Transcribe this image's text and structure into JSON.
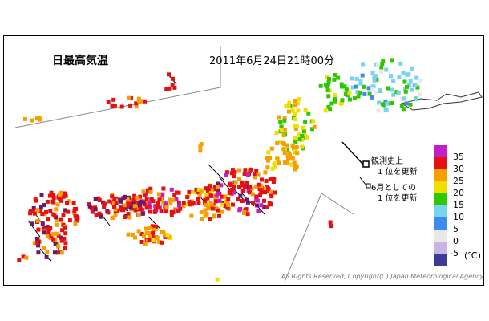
{
  "map": {
    "title": "日最高気温",
    "timestamp": "2011年6月24日21時00分",
    "legend": {
      "record_all_time": [
        "観測史上",
        "1 位を更新"
      ],
      "record_june": [
        "6月としての",
        "1 位を更新"
      ]
    },
    "color_scale": {
      "unit": "(℃)",
      "labels": [
        "35",
        "30",
        "25",
        "20",
        "15",
        "10",
        "5",
        "0",
        "-5"
      ],
      "colors": [
        "#c41ec8",
        "#e61010",
        "#f5a000",
        "#f0e000",
        "#2ec800",
        "#78d2f0",
        "#3c8cf0",
        "#e8e8e8",
        "#c8b4e8",
        "#3c3c96"
      ]
    },
    "copyright": "All Rights Reserved, Copyright(C) Japan Meteorological Agency"
  }
}
